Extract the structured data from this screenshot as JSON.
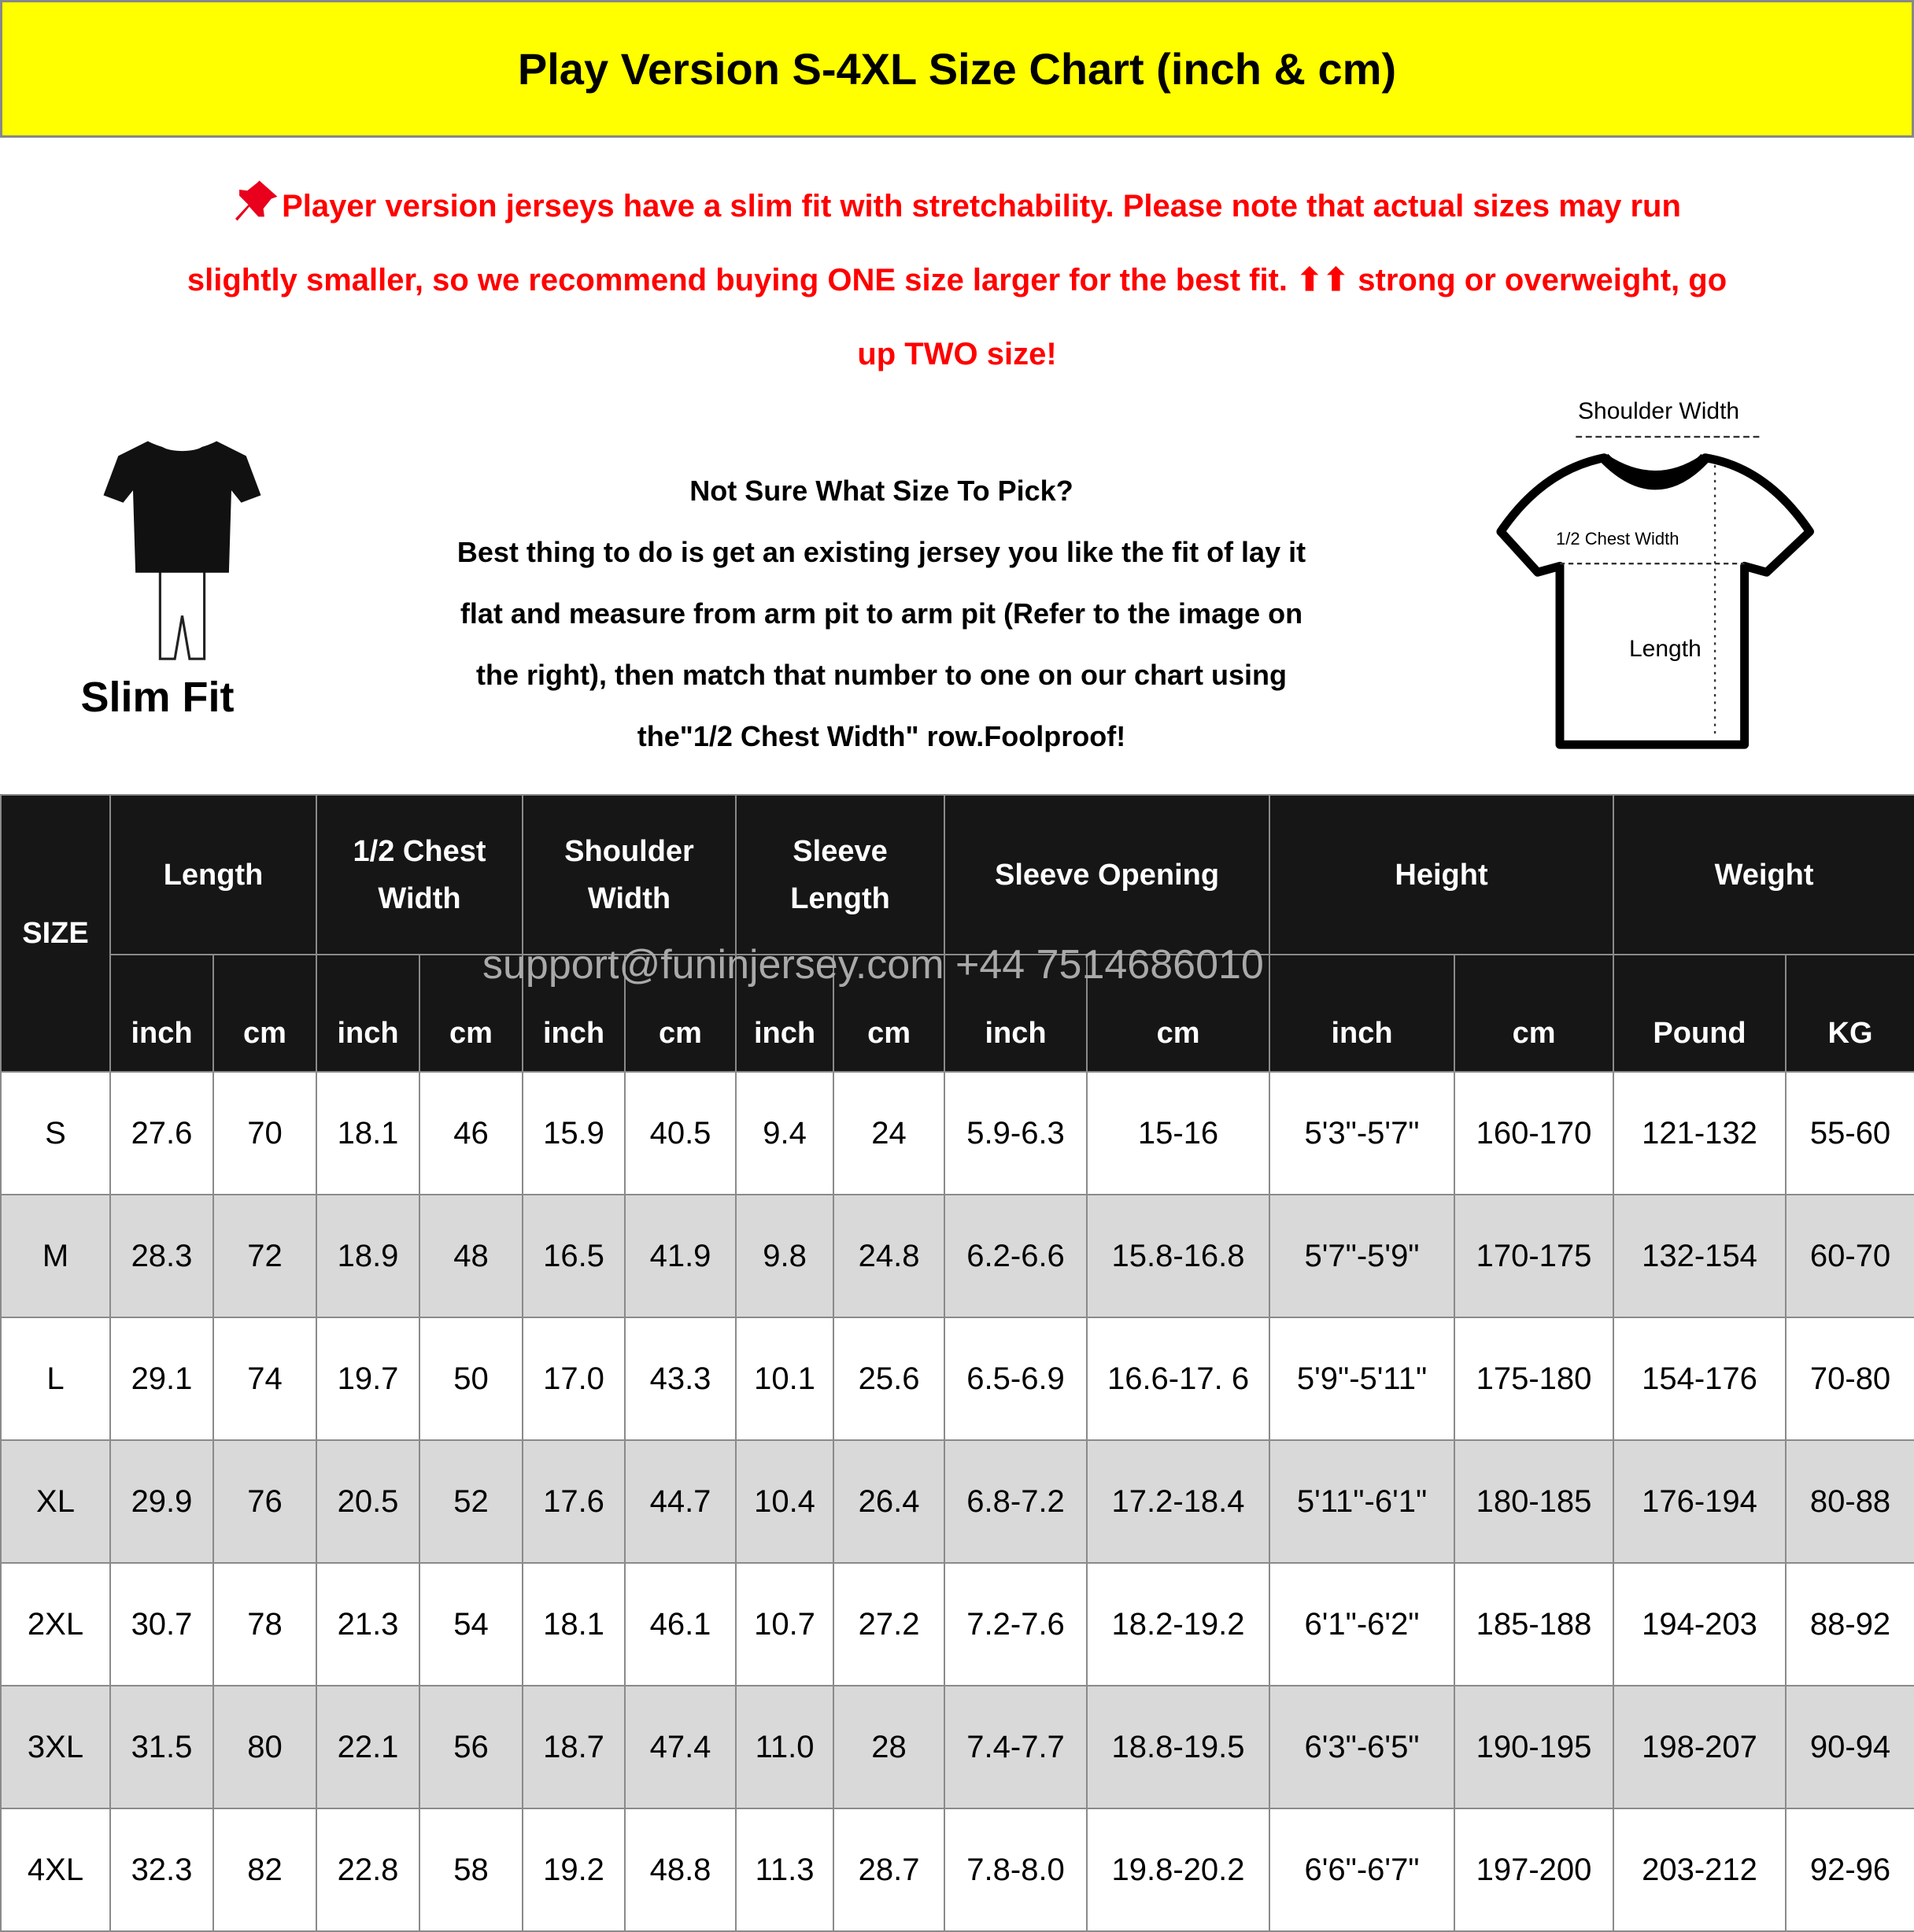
{
  "title": "Play Version S-4XL Size Chart (inch & cm)",
  "colors": {
    "title_bg": "#ffff00",
    "notice": "#ff0000",
    "header_bg": "#161616",
    "alt_row": "#d9d9d9"
  },
  "notice": {
    "icon": "pushpin-icon",
    "lines": [
      "Player version jerseys have a slim fit with stretchability. Please note that actual sizes may run",
      "slightly smaller, so we recommend buying ONE size larger for the best fit. ⬆⬆ strong or overweight, go",
      "up TWO size!"
    ]
  },
  "fit_label": "Slim Fit",
  "guide": {
    "lines": [
      "Not Sure What Size To Pick?",
      "Best thing to do is get an existing jersey you like the fit of lay it",
      "flat and measure from arm pit to arm pit (Refer to the image on",
      "the right), then match that number to one on our chart using",
      "the\"1/2 Chest Width\" row.Foolproof!"
    ]
  },
  "diagram": {
    "shoulder": "Shoulder Width",
    "chest": "1/2 Chest Width",
    "length": "Length"
  },
  "watermark": "support@funinjersey.com  +44 7514686010",
  "table": {
    "size_header": "SIZE",
    "groups": [
      "Length",
      "1/2 Chest Width",
      "Shoulder Width",
      "Sleeve Length",
      "Sleeve Opening",
      "Height",
      "Weight"
    ],
    "units": [
      "inch",
      "cm",
      "inch",
      "cm",
      "inch",
      "cm",
      "inch",
      "cm",
      "inch",
      "cm",
      "inch",
      "cm",
      "Pound",
      "KG"
    ],
    "rows": [
      [
        "S",
        "27.6",
        "70",
        "18.1",
        "46",
        "15.9",
        "40.5",
        "9.4",
        "24",
        "5.9-6.3",
        "15-16",
        "5'3\"-5'7\"",
        "160-170",
        "121-132",
        "55-60"
      ],
      [
        "M",
        "28.3",
        "72",
        "18.9",
        "48",
        "16.5",
        "41.9",
        "9.8",
        "24.8",
        "6.2-6.6",
        "15.8-16.8",
        "5'7\"-5'9\"",
        "170-175",
        "132-154",
        "60-70"
      ],
      [
        "L",
        "29.1",
        "74",
        "19.7",
        "50",
        "17.0",
        "43.3",
        "10.1",
        "25.6",
        "6.5-6.9",
        "16.6-17. 6",
        "5'9\"-5'11\"",
        "175-180",
        "154-176",
        "70-80"
      ],
      [
        "XL",
        "29.9",
        "76",
        "20.5",
        "52",
        "17.6",
        "44.7",
        "10.4",
        "26.4",
        "6.8-7.2",
        "17.2-18.4",
        "5'11\"-6'1\"",
        "180-185",
        "176-194",
        "80-88"
      ],
      [
        "2XL",
        "30.7",
        "78",
        "21.3",
        "54",
        "18.1",
        "46.1",
        "10.7",
        "27.2",
        "7.2-7.6",
        "18.2-19.2",
        "6'1\"-6'2\"",
        "185-188",
        "194-203",
        "88-92"
      ],
      [
        "3XL",
        "31.5",
        "80",
        "22.1",
        "56",
        "18.7",
        "47.4",
        "11.0",
        "28",
        "7.4-7.7",
        "18.8-19.5",
        "6'3\"-6'5\"",
        "190-195",
        "198-207",
        "90-94"
      ],
      [
        "4XL",
        "32.3",
        "82",
        "22.8",
        "58",
        "19.2",
        "48.8",
        "11.3",
        "28.7",
        "7.8-8.0",
        "19.8-20.2",
        "6'6\"-6'7\"",
        "197-200",
        "203-212",
        "92-96"
      ]
    ]
  }
}
